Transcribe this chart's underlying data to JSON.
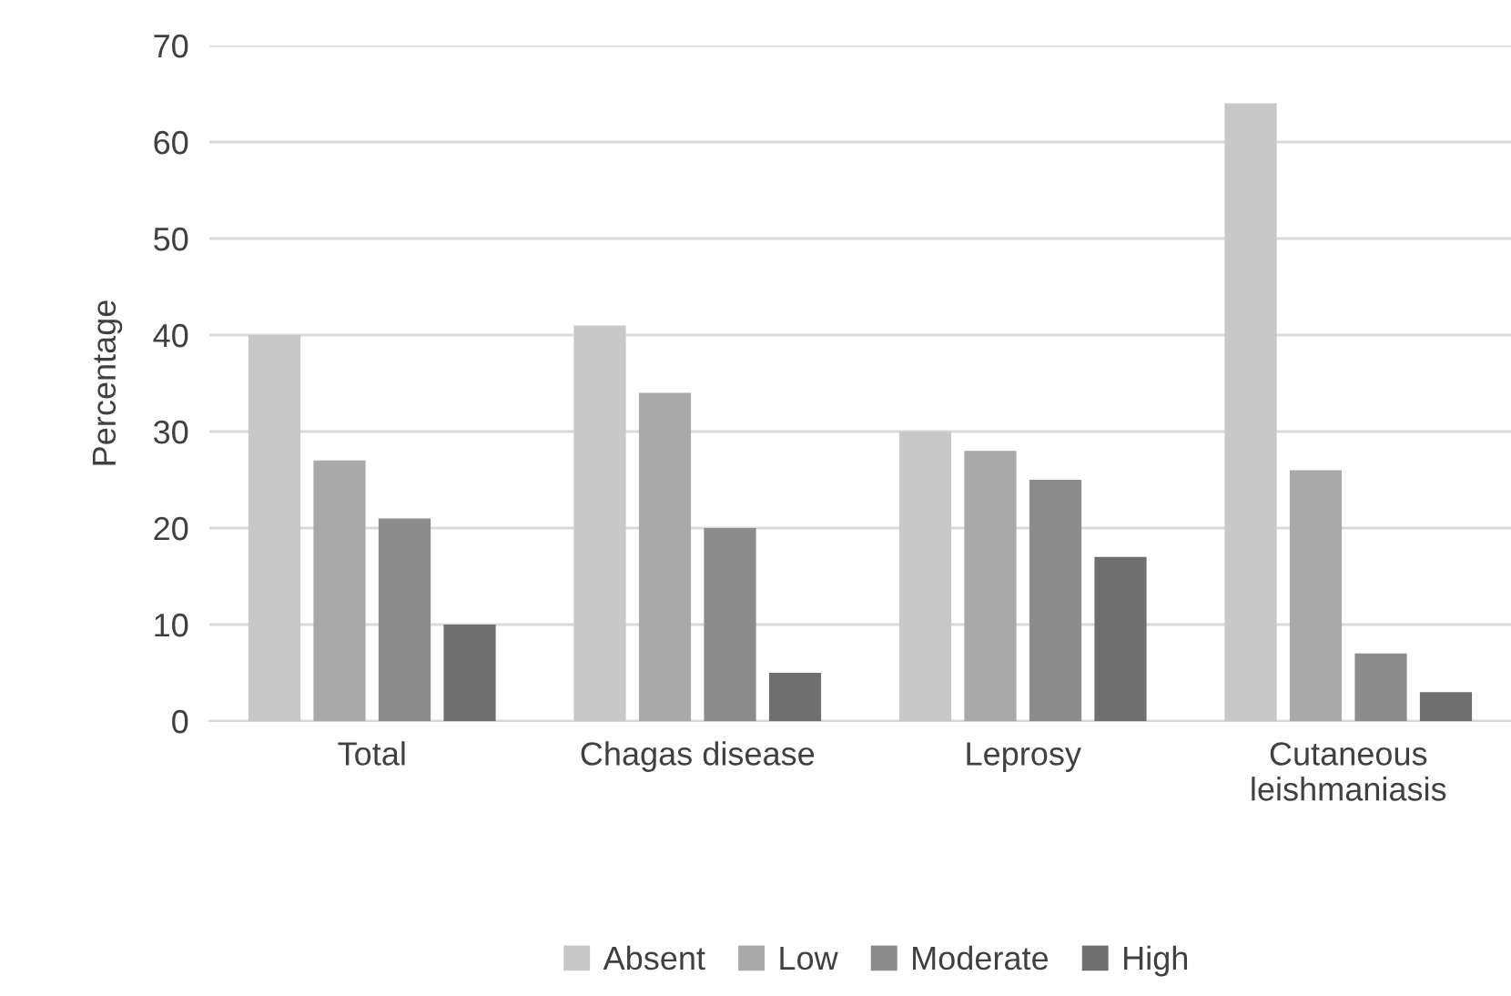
{
  "chart_data": {
    "type": "bar",
    "ylabel": "Percentage",
    "categories": [
      "Total",
      "Chagas disease",
      "Leprosy",
      "Cutaneous leishmaniasis"
    ],
    "series": [
      {
        "name": "Absent",
        "color": "#c8c8c8",
        "values": [
          40,
          41,
          30,
          64
        ]
      },
      {
        "name": "Low",
        "color": "#a9a9a9",
        "values": [
          27,
          34,
          28,
          26
        ]
      },
      {
        "name": "Moderate",
        "color": "#8c8c8c",
        "values": [
          21,
          20,
          25,
          7
        ]
      },
      {
        "name": "High",
        "color": "#707070",
        "values": [
          10,
          5,
          17,
          3
        ]
      }
    ],
    "ylim": [
      0,
      70
    ],
    "yticks": [
      0,
      10,
      20,
      30,
      40,
      50,
      60,
      70
    ],
    "grid": "y",
    "legend": "bottom"
  }
}
